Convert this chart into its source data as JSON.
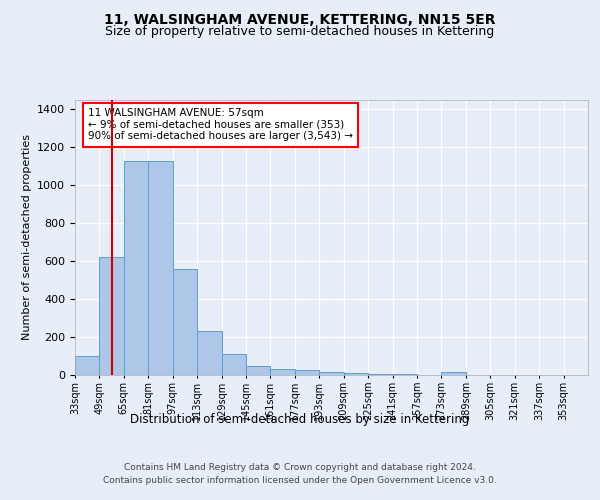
{
  "title": "11, WALSINGHAM AVENUE, KETTERING, NN15 5ER",
  "subtitle": "Size of property relative to semi-detached houses in Kettering",
  "xlabel": "Distribution of semi-detached houses by size in Kettering",
  "ylabel": "Number of semi-detached properties",
  "footer1": "Contains HM Land Registry data © Crown copyright and database right 2024.",
  "footer2": "Contains public sector information licensed under the Open Government Licence v3.0.",
  "annotation_title": "11 WALSINGHAM AVENUE: 57sqm",
  "annotation_line1": "← 9% of semi-detached houses are smaller (353)",
  "annotation_line2": "90% of semi-detached houses are larger (3,543) →",
  "property_size": 57,
  "bar_labels": [
    "33sqm",
    "49sqm",
    "65sqm",
    "81sqm",
    "97sqm",
    "113sqm",
    "129sqm",
    "145sqm",
    "161sqm",
    "177sqm",
    "193sqm",
    "209sqm",
    "225sqm",
    "241sqm",
    "257sqm",
    "273sqm",
    "289sqm",
    "305sqm",
    "321sqm",
    "337sqm",
    "353sqm"
  ],
  "bar_values": [
    100,
    620,
    1130,
    1130,
    560,
    230,
    110,
    50,
    30,
    25,
    15,
    10,
    5,
    3,
    2,
    15,
    2,
    2,
    1,
    1,
    1
  ],
  "bar_edges": [
    33,
    49,
    65,
    81,
    97,
    113,
    129,
    145,
    161,
    177,
    193,
    209,
    225,
    241,
    257,
    273,
    289,
    305,
    321,
    337,
    353,
    369
  ],
  "bar_color": "#aec6e8",
  "bar_edge_color": "#5a9fd4",
  "vline_color": "#cc0000",
  "vline_x": 57,
  "ylim": [
    0,
    1450
  ],
  "yticks": [
    0,
    200,
    400,
    600,
    800,
    1000,
    1200,
    1400
  ],
  "background_color": "#e8eef8",
  "grid_color": "#ffffff",
  "title_fontsize": 10,
  "subtitle_fontsize": 9
}
